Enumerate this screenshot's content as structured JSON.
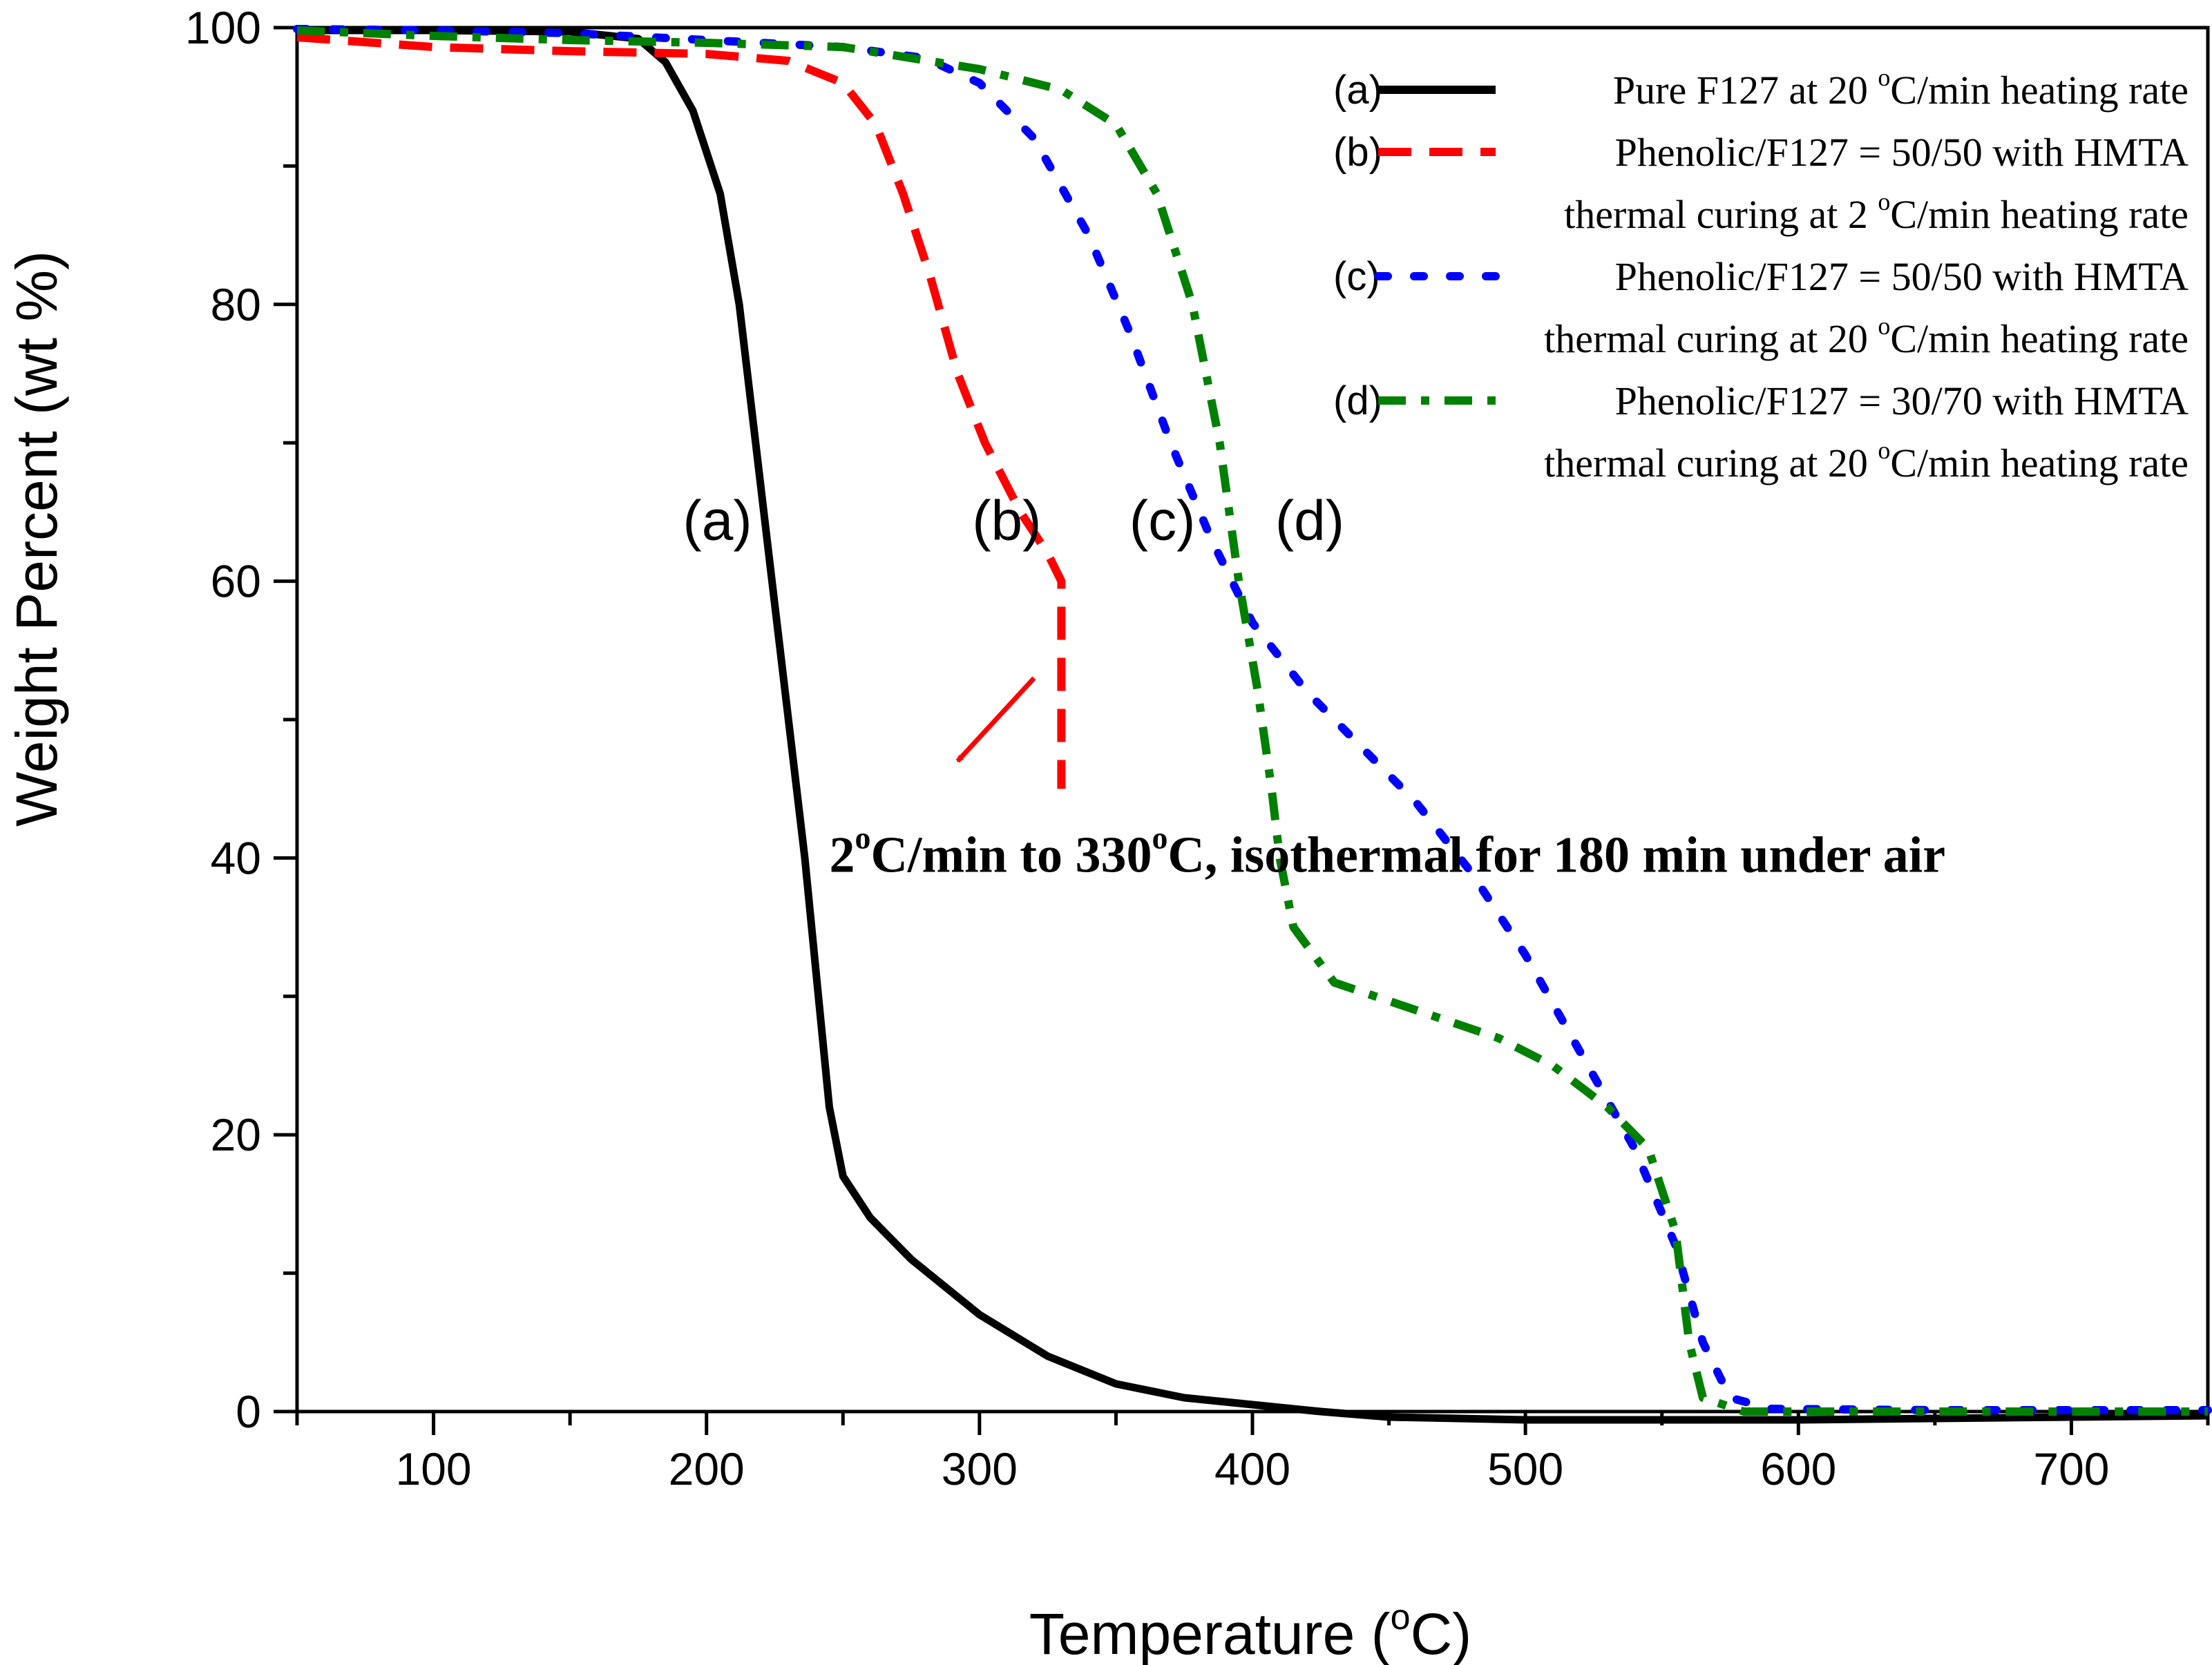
{
  "chart_data": {
    "type": "line",
    "xlabel": "Temperature (",
    "xlabel_sup": "o",
    "xlabel_end": "C)",
    "ylabel": "Weight Percent (wt %)",
    "xlim": [
      50,
      750
    ],
    "ylim": [
      0,
      100
    ],
    "x_ticks": [
      100,
      200,
      300,
      400,
      500,
      600,
      700
    ],
    "x_tick_labels": [
      "100",
      "200",
      "300",
      "400",
      "500",
      "600",
      "700"
    ],
    "y_ticks": [
      0,
      20,
      40,
      60,
      80,
      100
    ],
    "y_tick_labels": [
      "0",
      "20",
      "40",
      "60",
      "80",
      "100"
    ],
    "series": [
      {
        "id": "a",
        "name": "Pure F127 at 20 °C/min heating rate",
        "color": "#000000",
        "style": "solid",
        "points": [
          [
            50,
            99.8
          ],
          [
            100,
            99.8
          ],
          [
            150,
            99.7
          ],
          [
            175,
            99.2
          ],
          [
            185,
            97.5
          ],
          [
            195,
            94
          ],
          [
            205,
            88
          ],
          [
            212,
            80
          ],
          [
            218,
            70
          ],
          [
            224,
            60
          ],
          [
            230,
            50
          ],
          [
            236,
            40
          ],
          [
            241,
            30
          ],
          [
            245,
            22
          ],
          [
            250,
            17
          ],
          [
            260,
            14
          ],
          [
            275,
            11
          ],
          [
            300,
            7
          ],
          [
            325,
            4
          ],
          [
            350,
            2
          ],
          [
            375,
            1
          ],
          [
            400,
            0.5
          ],
          [
            425,
            0
          ],
          [
            450,
            -0.4
          ],
          [
            500,
            -0.6
          ],
          [
            550,
            -0.6
          ],
          [
            600,
            -0.6
          ],
          [
            650,
            -0.5
          ],
          [
            700,
            -0.4
          ],
          [
            750,
            -0.3
          ]
        ]
      },
      {
        "id": "b",
        "name": "Phenolic/F127 = 50/50 with HMTA thermal curing at 2 °C/min heating rate",
        "color": "#ff0000",
        "style": "dashed",
        "points": [
          [
            50,
            99.3
          ],
          [
            100,
            98.6
          ],
          [
            150,
            98.3
          ],
          [
            200,
            98.1
          ],
          [
            230,
            97.6
          ],
          [
            250,
            96
          ],
          [
            262,
            93
          ],
          [
            272,
            88
          ],
          [
            282,
            82
          ],
          [
            292,
            75
          ],
          [
            302,
            70
          ],
          [
            315,
            65
          ],
          [
            325,
            62
          ],
          [
            330,
            60
          ],
          [
            330,
            45
          ]
        ]
      },
      {
        "id": "c",
        "name": "Phenolic/F127 = 50/50 with HMTA thermal curing at 20 °C/min heating rate",
        "color": "#0000ff",
        "style": "dotted",
        "points": [
          [
            50,
            99.9
          ],
          [
            100,
            99.8
          ],
          [
            150,
            99.6
          ],
          [
            200,
            99.1
          ],
          [
            250,
            98.6
          ],
          [
            280,
            97.8
          ],
          [
            300,
            96
          ],
          [
            320,
            92
          ],
          [
            340,
            85
          ],
          [
            355,
            78
          ],
          [
            370,
            70
          ],
          [
            385,
            63
          ],
          [
            400,
            57
          ],
          [
            420,
            52
          ],
          [
            440,
            48
          ],
          [
            460,
            44
          ],
          [
            480,
            39
          ],
          [
            500,
            33
          ],
          [
            520,
            26
          ],
          [
            540,
            19
          ],
          [
            555,
            12
          ],
          [
            565,
            5
          ],
          [
            575,
            1
          ],
          [
            590,
            0.2
          ],
          [
            650,
            0.1
          ],
          [
            750,
            0.1
          ]
        ]
      },
      {
        "id": "d",
        "name": "Phenolic/F127 = 30/70 with HMTA thermal curing at 20 °C/min heating rate",
        "color": "#008000",
        "style": "dashdot",
        "points": [
          [
            50,
            99.8
          ],
          [
            100,
            99.4
          ],
          [
            150,
            99.1
          ],
          [
            200,
            98.9
          ],
          [
            250,
            98.6
          ],
          [
            300,
            97
          ],
          [
            330,
            95.5
          ],
          [
            350,
            93
          ],
          [
            365,
            88
          ],
          [
            378,
            80
          ],
          [
            388,
            70
          ],
          [
            395,
            60
          ],
          [
            402,
            52
          ],
          [
            407,
            45
          ],
          [
            410,
            40
          ],
          [
            415,
            35
          ],
          [
            430,
            31
          ],
          [
            460,
            29
          ],
          [
            490,
            27
          ],
          [
            510,
            25
          ],
          [
            530,
            22
          ],
          [
            545,
            19
          ],
          [
            555,
            13
          ],
          [
            560,
            5
          ],
          [
            565,
            1
          ],
          [
            580,
            0
          ],
          [
            650,
            0
          ],
          [
            750,
            0
          ]
        ]
      }
    ],
    "legend": {
      "position": "top-right",
      "entries": [
        {
          "tag": "(a)",
          "lines": [
            "Pure F127 at 20 °C/min heating rate"
          ]
        },
        {
          "tag": "(b)",
          "lines": [
            "Phenolic/F127 = 50/50 with HMTA",
            "thermal curing at 2 °C/min heating rate"
          ]
        },
        {
          "tag": "(c)",
          "lines": [
            "Phenolic/F127 = 50/50 with HMTA",
            "thermal curing at 20 °C/min heating rate"
          ]
        },
        {
          "tag": "(d)",
          "lines": [
            "Phenolic/F127 = 30/70 with HMTA",
            "thermal curing at 20 °C/min heating rate"
          ]
        }
      ]
    },
    "curve_labels": [
      {
        "text": "(a)",
        "x": 204,
        "y": 63
      },
      {
        "text": "(b)",
        "x": 310,
        "y": 63
      },
      {
        "text": "(c)",
        "x": 367,
        "y": 63
      },
      {
        "text": "(d)",
        "x": 421,
        "y": 63
      }
    ],
    "annotation": {
      "text": "2°C/min to 330°C, isothermal for 180 min under air",
      "parts": [
        "2",
        "o",
        "C/min to 330",
        "o",
        "C, isothermal for 180 min under air"
      ],
      "anchor_x": 245,
      "anchor_y": 39,
      "arrow_from": [
        320,
        53
      ],
      "arrow_to": [
        292,
        47
      ],
      "arrow_color": "#ff0000"
    }
  }
}
